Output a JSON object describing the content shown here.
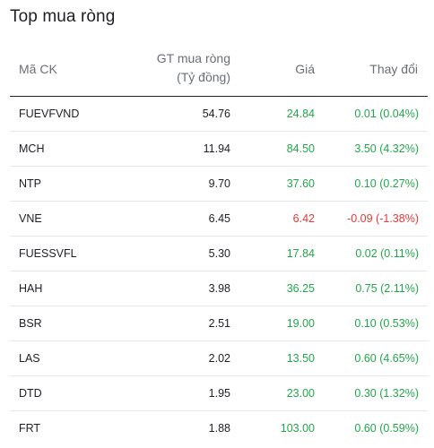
{
  "title": "Top mua ròng",
  "headers": {
    "code": "Mã CK",
    "value_line1": "GT mua ròng",
    "value_line2": "(Tỷ đồng)",
    "price": "Giá",
    "change": "Thay đổi"
  },
  "colors": {
    "up": "#22a64a",
    "down": "#e53935"
  },
  "rows": [
    {
      "code": "FUEVFVND",
      "value": "54.76",
      "price": "24.84",
      "change": "0.01 (0.04%)",
      "dir": "up"
    },
    {
      "code": "MCH",
      "value": "11.94",
      "price": "84.50",
      "change": "3.50 (4.32%)",
      "dir": "up"
    },
    {
      "code": "NTP",
      "value": "9.70",
      "price": "37.60",
      "change": "0.10 (0.27%)",
      "dir": "up"
    },
    {
      "code": "VNE",
      "value": "6.45",
      "price": "6.42",
      "change": "-0.09 (-1.38%)",
      "dir": "down"
    },
    {
      "code": "FUESSVFL",
      "value": "5.30",
      "price": "17.84",
      "change": "0.02 (0.11%)",
      "dir": "up"
    },
    {
      "code": "HAH",
      "value": "3.98",
      "price": "36.25",
      "change": "0.75 (2.11%)",
      "dir": "up"
    },
    {
      "code": "BSR",
      "value": "2.51",
      "price": "19.00",
      "change": "0.10 (0.53%)",
      "dir": "up"
    },
    {
      "code": "LAS",
      "value": "2.02",
      "price": "13.50",
      "change": "0.60 (4.65%)",
      "dir": "up"
    },
    {
      "code": "DTD",
      "value": "1.95",
      "price": "23.00",
      "change": "0.30 (1.32%)",
      "dir": "up"
    },
    {
      "code": "FRT",
      "value": "1.88",
      "price": "103.00",
      "change": "0.60 (0.59%)",
      "dir": "up"
    }
  ]
}
